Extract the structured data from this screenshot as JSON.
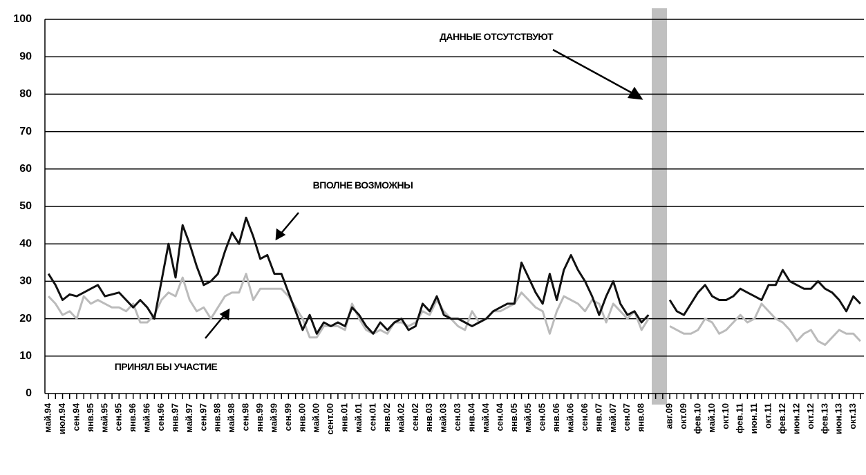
{
  "chart_data": {
    "type": "line",
    "annotations": [
      "ДАННЫЕ ОТСУТСТВУЮТ"
    ],
    "categories": [
      "май.94",
      null,
      "июл.94",
      null,
      "сен.94",
      null,
      "янв.95",
      null,
      "май.95",
      null,
      "сен.95",
      null,
      "янв.96",
      null,
      "май.96",
      null,
      "сен.96",
      null,
      "янв.97",
      null,
      "май.97",
      null,
      "сен.97",
      null,
      "янв.98",
      null,
      "май.98",
      null,
      "сен.98",
      null,
      "янв.99",
      null,
      "май.99",
      null,
      "сен.99",
      null,
      "янв.00",
      null,
      "май.00",
      null,
      "сент.00",
      null,
      "янв.01",
      null,
      "май.01",
      null,
      "сен.01",
      null,
      "янв.02",
      null,
      "май.02",
      null,
      "сен.02",
      null,
      "янв.03",
      null,
      "май.03",
      null,
      "сен.03",
      null,
      "янв.04",
      null,
      "май.04",
      null,
      "сен.04",
      null,
      "янв.05",
      null,
      "май.05",
      null,
      "сен.05",
      null,
      "янв.06",
      null,
      "май.06",
      null,
      "сен.06",
      null,
      "янв.07",
      null,
      "май.07",
      null,
      "сен.07",
      null,
      "янв.08",
      null,
      null,
      null,
      "авг.09",
      null,
      "окт.09",
      null,
      "фев.10",
      null,
      "май.10",
      null,
      "окт.10",
      null,
      "фев.11",
      null,
      "июн.11",
      null,
      "окт.11",
      null,
      "фев.12",
      null,
      "июн.12",
      null,
      "окт.12",
      null,
      "фев.13",
      null,
      "июн.13",
      null,
      "окт.13",
      null
    ],
    "series": [
      {
        "name": "ВПОЛНЕ ВОЗМОЖНЫ",
        "color": "#111111",
        "values": [
          32,
          29,
          25,
          26.5,
          26,
          27,
          28,
          29,
          26,
          26.5,
          27,
          25,
          23,
          25,
          23,
          20,
          30,
          40,
          31,
          45,
          40,
          34,
          29,
          30,
          32,
          38,
          43,
          40,
          47,
          42,
          36,
          37,
          32,
          32,
          27,
          22,
          17,
          21,
          16,
          19,
          18,
          19,
          18,
          23,
          21,
          18,
          16,
          19,
          17,
          19,
          20,
          17,
          18,
          24,
          22,
          26,
          21,
          20,
          20,
          19,
          18,
          19,
          20,
          22,
          23,
          24,
          24,
          35,
          31,
          27,
          24,
          32,
          25,
          33,
          37,
          33,
          30,
          26,
          21,
          26,
          30,
          24,
          21,
          22,
          19,
          21,
          null,
          null,
          25,
          22,
          21,
          24,
          27,
          29,
          26,
          25,
          25,
          26,
          28,
          27,
          26,
          25,
          29,
          29,
          33,
          30,
          29,
          28,
          28,
          30,
          28,
          27,
          25,
          22,
          26,
          24
        ]
      },
      {
        "name": "ПРИНЯЛ БЫ УЧАСТИЕ",
        "color": "#bbbbbb",
        "values": [
          26,
          24,
          21,
          22,
          20,
          26,
          24,
          25,
          24,
          23,
          23,
          22,
          24,
          19,
          19,
          21,
          25,
          27,
          26,
          31,
          25,
          22,
          23,
          20,
          23,
          26,
          27,
          27,
          32,
          25,
          28,
          28,
          28,
          28,
          26,
          23,
          20,
          15,
          15,
          18,
          18,
          18,
          17,
          24,
          20,
          17,
          16,
          17,
          16,
          19,
          19,
          18,
          19,
          22,
          21,
          25,
          22,
          20,
          18,
          17,
          22,
          19,
          20,
          22,
          22,
          23,
          24,
          27,
          25,
          23,
          22,
          16,
          22,
          26,
          25,
          24,
          22,
          25,
          24,
          19,
          24,
          22,
          20,
          22,
          17,
          20,
          null,
          null,
          18,
          17,
          16,
          16,
          17,
          20,
          19,
          16,
          17,
          19,
          21,
          19,
          20,
          24,
          22,
          20,
          19,
          17,
          14,
          16,
          17,
          14,
          13,
          15,
          17,
          16,
          16,
          14
        ]
      }
    ],
    "ylim": [
      0,
      100
    ],
    "yticks": [
      0,
      10,
      20,
      30,
      40,
      50,
      60,
      70,
      80,
      90,
      100
    ],
    "grid": true
  }
}
